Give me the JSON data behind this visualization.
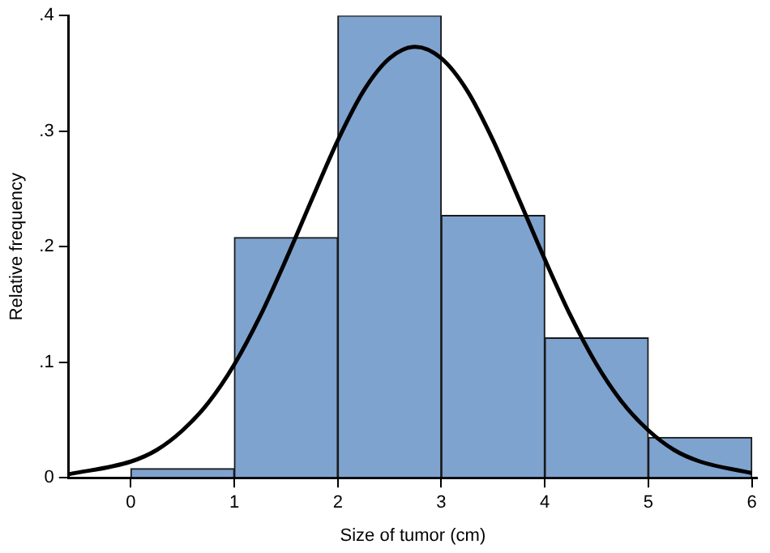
{
  "chart_data": {
    "type": "histogram",
    "xlabel": "Size of tumor (cm)",
    "ylabel": "Relative frequency",
    "bins": [
      0,
      1,
      2,
      3,
      4,
      5,
      6
    ],
    "values": [
      0.008,
      0.208,
      0.4,
      0.227,
      0.121,
      0.035
    ],
    "color": "#7fa3cf",
    "series": [
      {
        "type": "line",
        "color": "#000000",
        "x": [
          -0.6,
          0,
          0.25,
          0.5,
          0.75,
          1,
          1.25,
          1.5,
          1.75,
          2,
          2.25,
          2.5,
          2.75,
          3,
          3.25,
          3.5,
          3.75,
          4,
          4.25,
          4.5,
          4.75,
          5,
          5.25,
          5.5,
          6
        ],
        "values": [
          0.003,
          0.014,
          0.024,
          0.041,
          0.065,
          0.098,
          0.14,
          0.189,
          0.241,
          0.292,
          0.335,
          0.363,
          0.373,
          0.363,
          0.335,
          0.292,
          0.241,
          0.189,
          0.14,
          0.098,
          0.065,
          0.041,
          0.024,
          0.014,
          0.004
        ]
      }
    ],
    "xlim": [
      -0.6,
      6.05
    ],
    "xticks": [
      0,
      1,
      2,
      3,
      4,
      5,
      6
    ],
    "ylim": [
      0,
      0.4
    ],
    "yticks": [
      {
        "value": 0,
        "label": "0"
      },
      {
        "value": 0.1,
        "label": ".1"
      },
      {
        "value": 0.2,
        "label": ".2"
      },
      {
        "value": 0.3,
        "label": ".3"
      },
      {
        "value": 0.4,
        "label": ".4"
      }
    ],
    "grid": false,
    "marker": "none",
    "line_style": "solid"
  }
}
